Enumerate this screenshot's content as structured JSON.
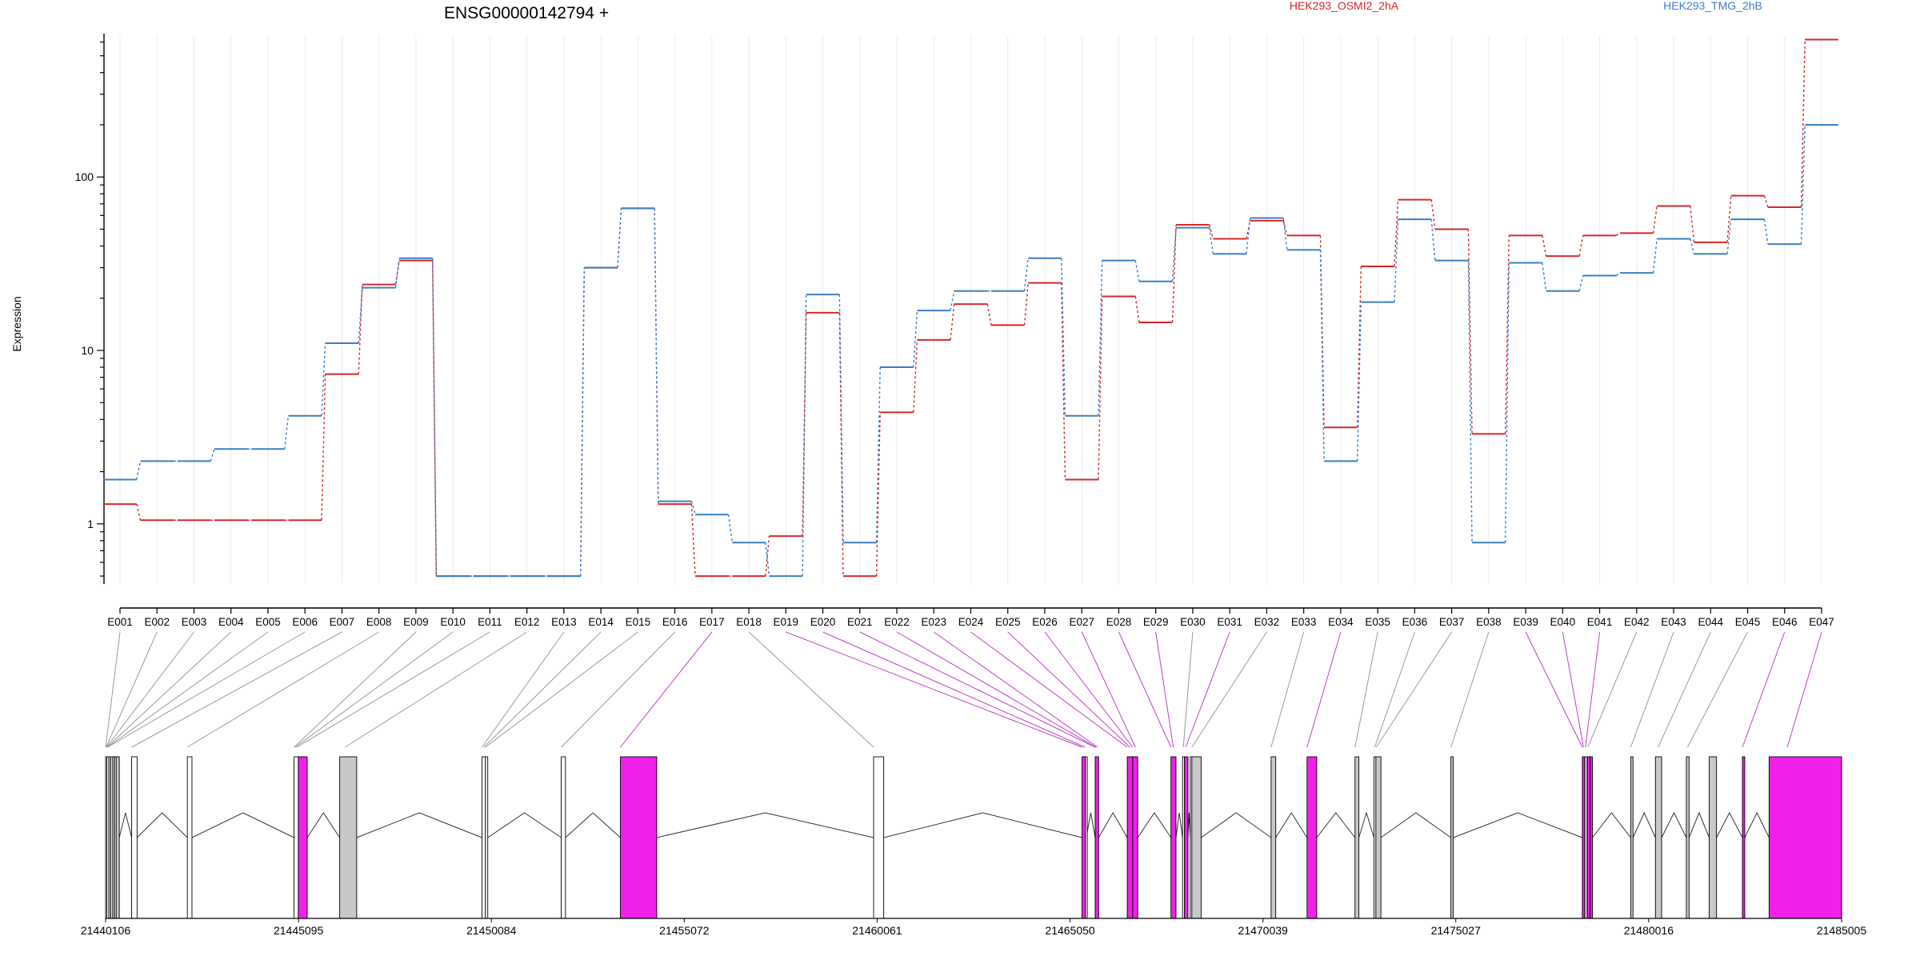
{
  "chart_data": {
    "type": "line",
    "title": "ENSG00000142794 +",
    "ylabel": "Expression",
    "y_scale": "log",
    "ylim": [
      0.45,
      650
    ],
    "y_ticks": [
      1,
      10,
      100
    ],
    "y_tick_labels": [
      "1",
      "10",
      "100"
    ],
    "grid": "vertical",
    "legend_placement": "top",
    "categories": [
      "E001",
      "E002",
      "E003",
      "E004",
      "E005",
      "E006",
      "E007",
      "E008",
      "E009",
      "E010",
      "E011",
      "E012",
      "E013",
      "E014",
      "E015",
      "E016",
      "E017",
      "E018",
      "E019",
      "E020",
      "E021",
      "E022",
      "E023",
      "E024",
      "E025",
      "E026",
      "E027",
      "E028",
      "E029",
      "E030",
      "E031",
      "E032",
      "E033",
      "E034",
      "E035",
      "E036",
      "E037",
      "E038",
      "E039",
      "E040",
      "E041",
      "E042",
      "E043",
      "E044",
      "E045",
      "E046",
      "E047"
    ],
    "series": [
      {
        "name": "HEK293_OSMI2_2hA",
        "color": "#d62728",
        "values": [
          1.3,
          1.05,
          1.05,
          1.05,
          1.05,
          1.05,
          7.3,
          24,
          33,
          0.5,
          0.5,
          0.5,
          0.5,
          30,
          66,
          1.3,
          0.5,
          0.5,
          0.85,
          16.5,
          0.5,
          4.4,
          11.5,
          18.5,
          14,
          24.5,
          1.8,
          20.5,
          14.5,
          53,
          44,
          56,
          46,
          3.6,
          30.5,
          74,
          50,
          3.3,
          46,
          35,
          46,
          47.5,
          68,
          42,
          78,
          67,
          620
        ]
      },
      {
        "name": "HEK293_TMG_2hB",
        "color": "#3a7fc4",
        "values": [
          1.8,
          2.3,
          2.3,
          2.7,
          2.7,
          4.2,
          11,
          23,
          34,
          0.5,
          0.5,
          0.5,
          0.5,
          30,
          66,
          1.35,
          1.13,
          0.78,
          0.5,
          21,
          0.78,
          8,
          17,
          22,
          22,
          34,
          4.2,
          33,
          25,
          51,
          36,
          58,
          38,
          2.3,
          19,
          57,
          33,
          0.78,
          32,
          22,
          27,
          28,
          44,
          36,
          57,
          41,
          200
        ]
      }
    ],
    "gene_model": {
      "coordinate_ticks": [
        "21440106",
        "21445095",
        "21450084",
        "21455072",
        "21460061",
        "21465050",
        "21470039",
        "21475027",
        "21480016",
        "21485005"
      ],
      "start": 21440106,
      "end": 21485005,
      "exon_colors": {
        "highlight": "#f020e8",
        "shared": "#c8c8c8",
        "plain": "#ffffff"
      },
      "exons": [
        {
          "id": "E001",
          "start": 21440106,
          "end": 21440138,
          "type": "plain"
        },
        {
          "id": "E002",
          "start": 21440138,
          "end": 21440190,
          "type": "plain"
        },
        {
          "id": "E003",
          "start": 21440190,
          "end": 21440240,
          "type": "shared"
        },
        {
          "id": "E004",
          "start": 21440240,
          "end": 21440290,
          "type": "plain"
        },
        {
          "id": "E005",
          "start": 21440290,
          "end": 21440340,
          "type": "shared"
        },
        {
          "id": "E006",
          "start": 21440340,
          "end": 21440380,
          "type": "plain"
        },
        {
          "id": "E007",
          "start": 21440380,
          "end": 21440460,
          "type": "shared"
        },
        {
          "id": "E008",
          "start": 21440780,
          "end": 21440920,
          "type": "plain"
        },
        {
          "id": "E009",
          "start": 21442220,
          "end": 21442340,
          "type": "plain"
        },
        {
          "id": "E010",
          "start": 21444980,
          "end": 21445090,
          "type": "plain"
        },
        {
          "id": "E011",
          "start": 21445090,
          "end": 21445320,
          "type": "highlight"
        },
        {
          "id": "E012",
          "start": 21446160,
          "end": 21446600,
          "type": "shared"
        },
        {
          "id": "E013",
          "start": 21449840,
          "end": 21449930,
          "type": "plain"
        },
        {
          "id": "E014",
          "start": 21449930,
          "end": 21449990,
          "type": "plain"
        },
        {
          "id": "E015",
          "start": 21451890,
          "end": 21452000,
          "type": "plain"
        },
        {
          "id": "E016",
          "start": 21453420,
          "end": 21454360,
          "type": "highlight"
        },
        {
          "id": "E017",
          "start": 21459970,
          "end": 21460230,
          "type": "plain"
        },
        {
          "id": "E018",
          "start": 21465360,
          "end": 21465450,
          "type": "highlight"
        },
        {
          "id": "E019",
          "start": 21465450,
          "end": 21465470,
          "type": "plain"
        },
        {
          "id": "E020",
          "start": 21465700,
          "end": 21465790,
          "type": "highlight"
        },
        {
          "id": "E021",
          "start": 21466530,
          "end": 21466670,
          "type": "highlight"
        },
        {
          "id": "E022",
          "start": 21466670,
          "end": 21466800,
          "type": "highlight"
        },
        {
          "id": "E023",
          "start": 21467660,
          "end": 21467790,
          "type": "highlight"
        },
        {
          "id": "E024",
          "start": 21467960,
          "end": 21468010,
          "type": "plain"
        },
        {
          "id": "E025",
          "start": 21468010,
          "end": 21468100,
          "type": "highlight"
        },
        {
          "id": "E026",
          "start": 21468160,
          "end": 21468200,
          "type": "plain"
        },
        {
          "id": "E027",
          "start": 21468200,
          "end": 21468440,
          "type": "shared"
        },
        {
          "id": "E028",
          "start": 21470250,
          "end": 21470370,
          "type": "shared"
        },
        {
          "id": "E029",
          "start": 21471180,
          "end": 21471430,
          "type": "highlight"
        },
        {
          "id": "E030",
          "start": 21472420,
          "end": 21472520,
          "type": "shared"
        },
        {
          "id": "E031",
          "start": 21472910,
          "end": 21472960,
          "type": "plain"
        },
        {
          "id": "E032",
          "start": 21472960,
          "end": 21473090,
          "type": "shared"
        },
        {
          "id": "E033",
          "start": 21474900,
          "end": 21474960,
          "type": "shared"
        },
        {
          "id": "E034",
          "start": 21478300,
          "end": 21478360,
          "type": "highlight"
        },
        {
          "id": "E035",
          "start": 21478360,
          "end": 21478430,
          "type": "shared"
        },
        {
          "id": "E036",
          "start": 21478430,
          "end": 21478500,
          "type": "highlight"
        },
        {
          "id": "E037",
          "start": 21478500,
          "end": 21478560,
          "type": "highlight"
        },
        {
          "id": "E038",
          "start": 21479550,
          "end": 21479610,
          "type": "shared"
        },
        {
          "id": "E039",
          "start": 21480190,
          "end": 21480350,
          "type": "shared"
        },
        {
          "id": "E040",
          "start": 21480990,
          "end": 21481060,
          "type": "shared"
        },
        {
          "id": "E041",
          "start": 21481580,
          "end": 21481770,
          "type": "shared"
        },
        {
          "id": "E042",
          "start": 21482440,
          "end": 21482500,
          "type": "highlight"
        },
        {
          "id": "E043",
          "start": 21483130,
          "end": 21485005,
          "type": "highlight"
        }
      ],
      "connector_targets": [
        21440106,
        21440120,
        21440130,
        21440140,
        21440150,
        21440160,
        21440780,
        21442220,
        21444980,
        21445010,
        21445050,
        21446300,
        21449840,
        21449890,
        21449930,
        21451890,
        21453420,
        21459970,
        21465360,
        21465440,
        21465700,
        21465720,
        21465760,
        21466530,
        21466600,
        21466670,
        21466740,
        21467660,
        21467720,
        21467980,
        21468040,
        21468200,
        21470250,
        21471180,
        21472420,
        21472930,
        21472970,
        21474900,
        21478300,
        21478330,
        21478380,
        21478440,
        21479550,
        21480260,
        21481020,
        21482440,
        21483600
      ]
    }
  }
}
